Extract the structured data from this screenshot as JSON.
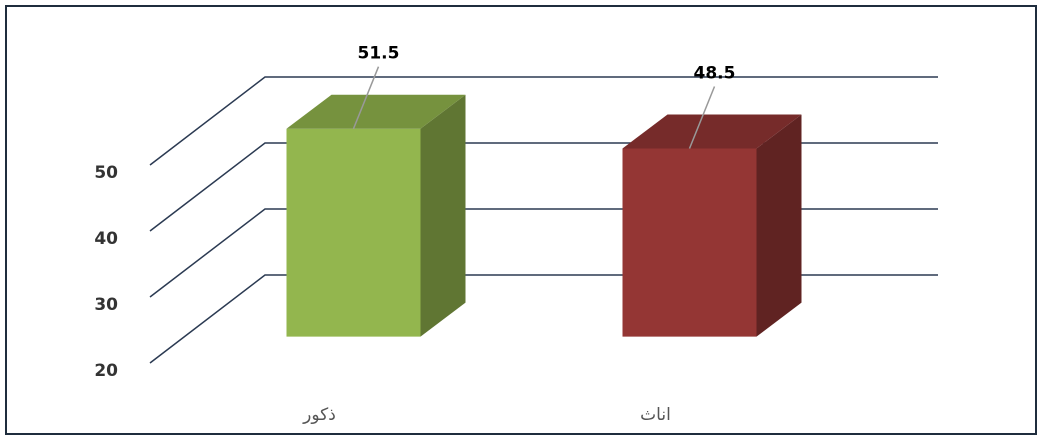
{
  "chart_data": {
    "type": "bar3d",
    "categories": [
      "ذكور",
      "اناث"
    ],
    "series": [
      {
        "values": [
          51.5,
          48.5
        ],
        "colors": [
          "#93b64e",
          "#943634"
        ]
      }
    ],
    "ylim": [
      20,
      50
    ],
    "yticks": [
      20,
      30,
      40,
      50
    ],
    "grid": true
  }
}
